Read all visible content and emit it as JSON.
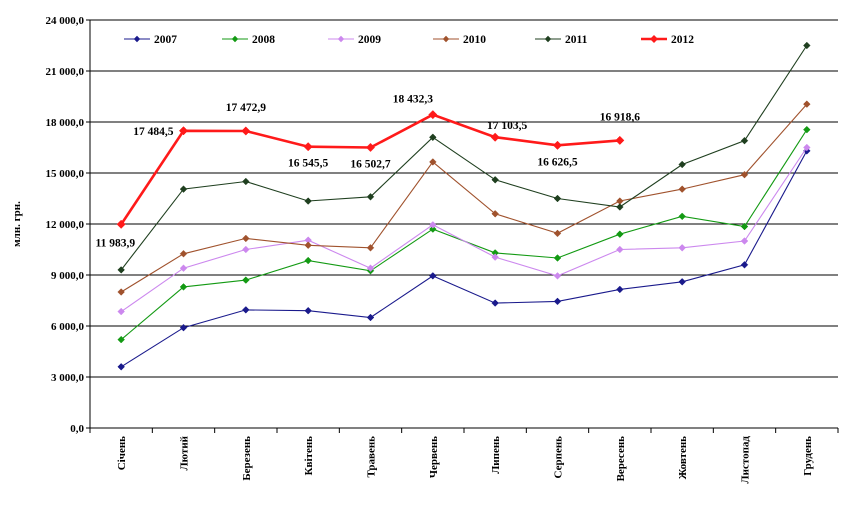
{
  "chart_data": {
    "type": "line",
    "title": "",
    "xlabel": "",
    "ylabel": "млн. грн.",
    "ylim": [
      0,
      24000
    ],
    "yticks": [
      0,
      3000,
      6000,
      9000,
      12000,
      15000,
      18000,
      21000,
      24000
    ],
    "ytick_labels": [
      "0,0",
      "3 000,0",
      "6 000,0",
      "9 000,0",
      "12 000,0",
      "15 000,0",
      "18 000,0",
      "21 000,0",
      "24 000,0"
    ],
    "grid": true,
    "legend_position": "top",
    "categories": [
      "Січень",
      "Лютий",
      "Березень",
      "Квітень",
      "Травень",
      "Червень",
      "Липень",
      "Серпень",
      "Вересень",
      "Жовтень",
      "Листопад",
      "Грудень"
    ],
    "series": [
      {
        "name": "2007",
        "color": "#1a1a8c",
        "values": [
          3600,
          5900,
          6950,
          6900,
          6500,
          8950,
          7350,
          7450,
          8150,
          8600,
          9600,
          16300
        ]
      },
      {
        "name": "2008",
        "color": "#139a13",
        "values": [
          5200,
          8300,
          8700,
          9850,
          9250,
          11700,
          10300,
          10000,
          11400,
          12450,
          11850,
          17550
        ]
      },
      {
        "name": "2009",
        "color": "#cc88ee",
        "values": [
          6850,
          9400,
          10500,
          11050,
          9400,
          11950,
          10050,
          8950,
          10500,
          10600,
          11000,
          16500
        ]
      },
      {
        "name": "2010",
        "color": "#a0522d",
        "values": [
          8000,
          10250,
          11150,
          10750,
          10600,
          15650,
          12600,
          11450,
          13350,
          14050,
          14900,
          19050
        ]
      },
      {
        "name": "2011",
        "color": "#1f3f1f",
        "values": [
          9300,
          14050,
          14500,
          13350,
          13600,
          17100,
          14600,
          13500,
          13000,
          15500,
          16900,
          22500
        ]
      },
      {
        "name": "2012",
        "color": "#ff1a1a",
        "values": [
          11983.9,
          17484.5,
          17472.9,
          16545.5,
          16502.7,
          18432.3,
          17103.5,
          16626.5,
          16918.6,
          null,
          null,
          null
        ]
      }
    ],
    "annotations": [
      {
        "series": "2012",
        "index": 0,
        "text": "11 983,9",
        "pos": "below-left"
      },
      {
        "series": "2012",
        "index": 1,
        "text": "17 484,5",
        "pos": "left"
      },
      {
        "series": "2012",
        "index": 2,
        "text": "17 472,9",
        "pos": "above"
      },
      {
        "series": "2012",
        "index": 3,
        "text": "16 545,5",
        "pos": "below"
      },
      {
        "series": "2012",
        "index": 4,
        "text": "16 502,7",
        "pos": "below"
      },
      {
        "series": "2012",
        "index": 5,
        "text": "18 432,3",
        "pos": "above-left"
      },
      {
        "series": "2012",
        "index": 6,
        "text": "17 103,5",
        "pos": "above-right"
      },
      {
        "series": "2012",
        "index": 7,
        "text": "16 626,5",
        "pos": "below"
      },
      {
        "series": "2012",
        "index": 8,
        "text": "16 918,6",
        "pos": "above"
      }
    ]
  }
}
